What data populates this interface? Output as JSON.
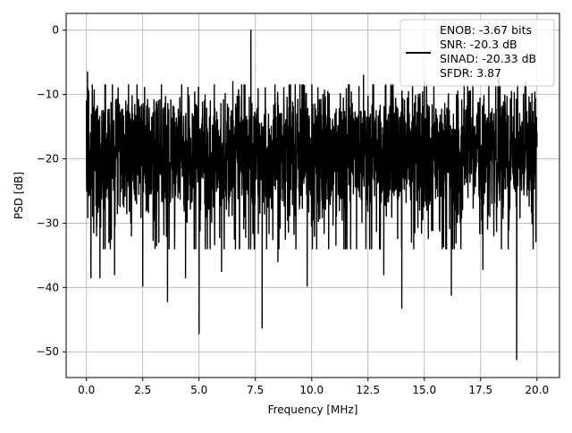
{
  "chart_data": {
    "type": "line",
    "xlabel": "Frequency [MHz]",
    "ylabel": "PSD [dB]",
    "xlim": [
      -0.9,
      21.0
    ],
    "ylim": [
      -54.0,
      2.6
    ],
    "xticks": [
      0.0,
      2.5,
      5.0,
      7.5,
      10.0,
      12.5,
      15.0,
      17.5,
      20.0
    ],
    "xtick_labels": [
      "0.0",
      "2.5",
      "5.0",
      "7.5",
      "10.0",
      "12.5",
      "15.0",
      "17.5",
      "20.0"
    ],
    "yticks": [
      0,
      -10,
      -20,
      -30,
      -40,
      -50
    ],
    "ytick_labels": [
      "0",
      "−10",
      "−20",
      "−30",
      "−40",
      "−50"
    ],
    "grid": true,
    "legend_position": "top-right",
    "legend_lines": [
      "ENOB: -3.67 bits",
      "SNR: -20.3 dB",
      "SINAD: -20.33 dB",
      "SFDR: 3.87"
    ],
    "series": [
      {
        "color": "#000000",
        "noise_floor_db": -18.5,
        "x_range": [
          0.0,
          20.0
        ],
        "x": [
          0.0,
          0.05,
          0.1,
          0.15,
          0.2,
          0.3,
          0.45,
          0.6,
          0.75,
          1.0,
          1.25,
          1.5,
          2.0,
          2.5,
          2.9,
          3.6,
          4.4,
          5.0,
          5.5,
          6.0,
          6.5,
          7.0,
          7.25,
          7.3,
          7.8,
          8.5,
          9.0,
          9.8,
          10.5,
          11.5,
          12.3,
          13.2,
          14.0,
          15.0,
          16.2,
          17.0,
          17.6,
          18.3,
          19.1,
          19.5,
          20.0
        ],
        "y": [
          -11.0,
          -6.5,
          -9.5,
          -22.0,
          -38.5,
          -12.0,
          -32.0,
          -38.5,
          -12.5,
          -33.0,
          -38.0,
          -13.0,
          -32.0,
          -39.8,
          -13.5,
          -42.2,
          -38.5,
          -47.2,
          -11.0,
          -37.5,
          -8.0,
          -8.5,
          -15.0,
          0.0,
          -46.3,
          -36.0,
          -8.5,
          -39.8,
          -10.0,
          -34.0,
          -7.0,
          -38.0,
          -43.2,
          -8.0,
          -41.2,
          -9.5,
          -37.2,
          -7.0,
          -51.2,
          -8.0,
          -16.0
        ]
      }
    ]
  }
}
